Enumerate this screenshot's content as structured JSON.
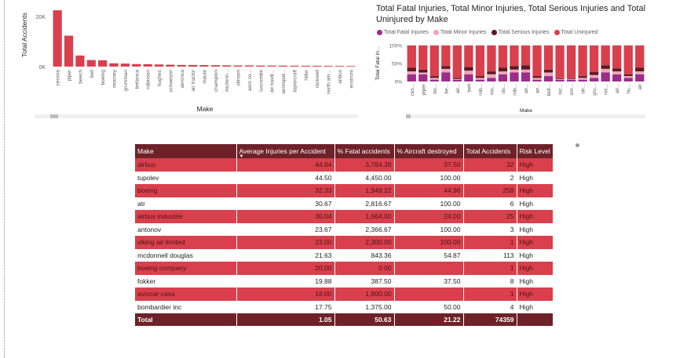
{
  "chart_data": [
    {
      "type": "bar",
      "title": "",
      "xlabel": "Make",
      "ylabel": "Total Accidents",
      "ylim": [
        0,
        24000
      ],
      "yticks": [
        "0K",
        "20K"
      ],
      "categories": [
        "cessna",
        "piper",
        "beech",
        "bell",
        "boeing",
        "mooney",
        "grumman",
        "bellanca",
        "robinson",
        "hughes",
        "schweizer",
        "aeronca",
        "air tractor",
        "maule",
        "champion",
        "mcdonn...",
        "stinson",
        "aero co...",
        "luscombe",
        "de havill...",
        "aerospat...",
        "taylorcraft",
        "hiller",
        "rockwell",
        "north am...",
        "airbus",
        "enstrom"
      ],
      "values": [
        22400,
        12300,
        4400,
        2600,
        2500,
        1300,
        1200,
        1000,
        950,
        850,
        750,
        650,
        650,
        600,
        550,
        500,
        450,
        450,
        420,
        400,
        380,
        360,
        340,
        320,
        300,
        280,
        260
      ],
      "color": "#d93f4c"
    },
    {
      "type": "bar",
      "stacked": "100%",
      "title": "Total Fatal Injuries, Total Minor Injuries, Total Serious Injuries and Total Uninjured by Make",
      "xlabel": "Make",
      "ylabel": "Total Fatal In...",
      "yticks": [
        "0%",
        "50%",
        "100%"
      ],
      "categories": [
        "ces...",
        "piper",
        "bo...",
        "be...",
        "air...",
        "bell",
        "rob...",
        "mo...",
        "do...",
        "rob...",
        "air...",
        "air...",
        "bell...",
        "loc...",
        "em...",
        "de...",
        "gru...",
        "roc...",
        "air...",
        "hu...",
        "atr"
      ],
      "series": [
        {
          "name": "Total Fatal Injuries",
          "color": "#9c2d8a",
          "values": [
            20,
            20,
            5,
            25,
            5,
            20,
            5,
            10,
            20,
            25,
            25,
            5,
            15,
            5,
            5,
            5,
            10,
            25,
            20,
            10,
            20
          ]
        },
        {
          "name": "Total Minor Injuries",
          "color": "#f0a7b6",
          "values": [
            8,
            5,
            5,
            10,
            2,
            10,
            5,
            10,
            8,
            8,
            8,
            5,
            10,
            2,
            2,
            5,
            8,
            10,
            8,
            5,
            8
          ]
        },
        {
          "name": "Total Serious Injuries",
          "color": "#5a1a22",
          "values": [
            10,
            8,
            5,
            8,
            3,
            10,
            5,
            8,
            10,
            10,
            12,
            5,
            8,
            2,
            2,
            5,
            8,
            10,
            8,
            5,
            10
          ]
        },
        {
          "name": "Total Uninjured",
          "color": "#d93f4c",
          "values": [
            62,
            67,
            85,
            57,
            90,
            60,
            85,
            72,
            62,
            57,
            55,
            85,
            67,
            91,
            91,
            85,
            74,
            55,
            64,
            80,
            62
          ]
        }
      ]
    }
  ],
  "table": {
    "headers": [
      "Make",
      "Average Injuries per Accident",
      "% Fatal accidents",
      "% Aircraft destroyed",
      "Total Accidents",
      "Risk Level"
    ],
    "rows": [
      [
        "airbus",
        "44.84",
        "3,784.38",
        "37.50",
        "32",
        "High"
      ],
      [
        "tupolev",
        "44.50",
        "4,450.00",
        "100.00",
        "2",
        "High"
      ],
      [
        "boeing",
        "32.33",
        "1,949.22",
        "44.96",
        "258",
        "High"
      ],
      [
        "atr",
        "30.67",
        "2,816.67",
        "100.00",
        "6",
        "High"
      ],
      [
        "airbus industrie",
        "30.04",
        "1,664.00",
        "24.00",
        "25",
        "High"
      ],
      [
        "antonov",
        "23.67",
        "2,366.67",
        "100.00",
        "3",
        "High"
      ],
      [
        "viking air limited",
        "23.00",
        "2,300.00",
        "100.00",
        "1",
        "High"
      ],
      [
        "mcdonnell douglas",
        "21.63",
        "843.36",
        "54.87",
        "113",
        "High"
      ],
      [
        "boeing company",
        "20.00",
        "0.00",
        "",
        "1",
        "High"
      ],
      [
        "fokker",
        "19.88",
        "387.50",
        "37.50",
        "8",
        "High"
      ],
      [
        "aviocar casa",
        "18.00",
        "1,800.00",
        "",
        "1",
        "High"
      ],
      [
        "bombardier inc",
        "17.75",
        "1,375.00",
        "50.00",
        "4",
        "High"
      ]
    ],
    "total": [
      "Total",
      "1.05",
      "50.63",
      "21.22",
      "74359",
      ""
    ]
  }
}
